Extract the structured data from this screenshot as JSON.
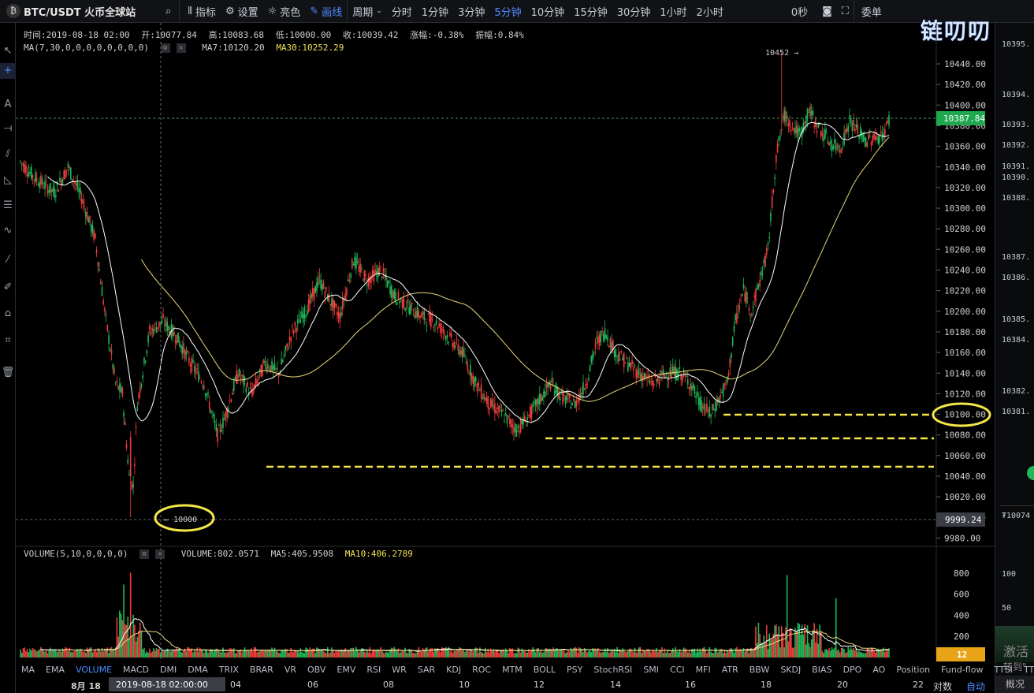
{
  "topbar": {
    "pair": "BTC/USDT 火币全球站",
    "indicators_label": "指标",
    "settings_label": "设置",
    "theme_label": "亮色",
    "draw_label": "画线",
    "period_label": "周期",
    "periods": [
      "分时",
      "1分钟",
      "3分钟",
      "5分钟",
      "10分钟",
      "15分钟",
      "30分钟",
      "1小时",
      "2小时"
    ],
    "active_period": "5分钟",
    "countdown": "0秒",
    "orderbook_label": "委单"
  },
  "info": {
    "time": "时间:2019-08-18 02:00",
    "open": "开:10077.84",
    "high": "高:10083.68",
    "low": "低:10000.00",
    "close": "收:10039.42",
    "change": "涨幅:-0.38%",
    "amplitude": "振幅:0.84%",
    "ma_params": "MA(7,30,0,0,0,0,0,0,0,0)",
    "ma7": "MA7:10120.20",
    "ma30": "MA30:10252.29",
    "vol_params": "VOLUME(5,10,0,0,0,0)",
    "volume": "VOLUME:802.0571",
    "vma5": "MA5:405.9508",
    "vma10": "MA10:406.2789"
  },
  "price_axis": {
    "ticks": [
      "10440.00",
      "10420.00",
      "10400.00",
      "10380.00",
      "10360.00",
      "10340.00",
      "10320.00",
      "10300.00",
      "10280.00",
      "10260.00",
      "10240.00",
      "10220.00",
      "10200.00",
      "10180.00",
      "10160.00",
      "10140.00",
      "10120.00",
      "10100.00",
      "10080.00",
      "10060.00",
      "10040.00",
      "10020.00",
      "10000.00",
      "9980.00"
    ],
    "current_price": "10387.84",
    "crosshair_price": "9999.24",
    "high_marker": "10452",
    "low_marker": "10000"
  },
  "volume_axis": {
    "ticks": [
      "800",
      "600",
      "400",
      "200"
    ],
    "current": "12"
  },
  "orderbook_prices": [
    "10395.",
    "10394.",
    "10393.",
    "10392.",
    "10391.",
    "10390.",
    "10388.",
    "10387.",
    "10386.",
    "10385.",
    "10384.",
    "10382.",
    "10381.",
    "₮10074",
    "100",
    "50"
  ],
  "orderbook_more_label": "激活",
  "orderbook_more_sub": "转到\"",
  "overview_label": "概况",
  "indicators": [
    "MA",
    "EMA",
    "VOLUME",
    "MACD",
    "DMI",
    "DMA",
    "TRIX",
    "BRAR",
    "VR",
    "OBV",
    "EMV",
    "RSI",
    "WR",
    "SAR",
    "KDJ",
    "ROC",
    "MTM",
    "BOLL",
    "PSY",
    "StochRSI",
    "SMI",
    "CCI",
    "MFI",
    "ATR",
    "BBW",
    "SKDJ",
    "BIAS",
    "DPO",
    "AO",
    "Position",
    "Fund-flow",
    "TTSI",
    "TTMU"
  ],
  "active_indicator": "VOLUME",
  "dates": {
    "d18": "8月 18",
    "crosshair_time": "2019-08-18 02:00:00",
    "labels": [
      "04",
      "06",
      "08",
      "10",
      "12",
      "14",
      "16",
      "18",
      "20",
      "22"
    ],
    "log_label": "对数",
    "auto_label": "自动"
  },
  "watermark": "链叨叨",
  "chart_data": {
    "type": "candlestick",
    "timeframe": "5m",
    "ylim": [
      9980,
      10452
    ],
    "key_levels": [
      10100,
      10076,
      10050
    ],
    "high": 10452,
    "low": 10000,
    "last": 10387.84,
    "colors": {
      "up": "#1fb85a",
      "down": "#f23b3b",
      "ma7": "#ffffff",
      "ma30": "#e8d77a",
      "highlight": "#f5e64a"
    }
  }
}
